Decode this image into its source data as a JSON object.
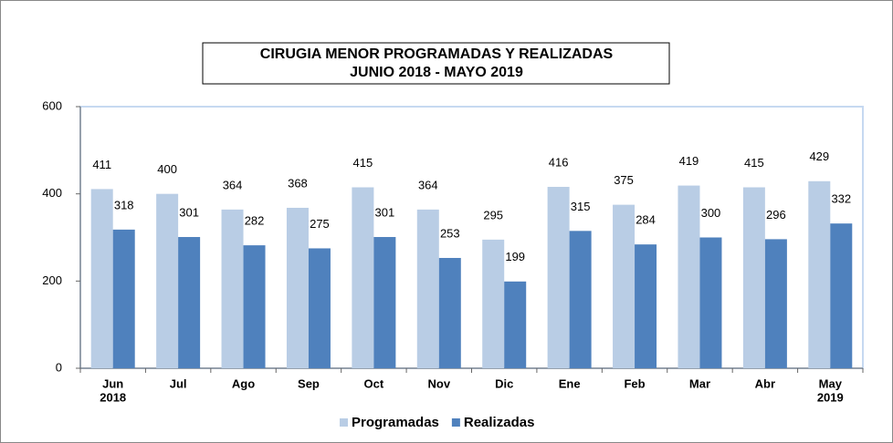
{
  "chart_data": {
    "type": "bar",
    "title": [
      "CIRUGIA MENOR PROGRAMADAS Y REALIZADAS",
      "JUNIO 2018  -  MAYO 2019"
    ],
    "categories": [
      [
        "Jun",
        "2018"
      ],
      "Jul",
      "Ago",
      "Sep",
      "Oct",
      "Nov",
      "Dic",
      "Ene",
      "Feb",
      "Mar",
      "Abr",
      [
        "May",
        "2019"
      ]
    ],
    "series": [
      {
        "name": "Programadas",
        "color": "#b9cde5",
        "values": [
          411,
          400,
          364,
          368,
          415,
          364,
          295,
          416,
          375,
          419,
          415,
          429
        ]
      },
      {
        "name": "Realizadas",
        "color": "#4f81bd",
        "values": [
          318,
          301,
          282,
          275,
          301,
          253,
          199,
          315,
          284,
          300,
          296,
          332
        ]
      }
    ],
    "ylim": [
      0,
      600
    ],
    "yticks": [
      0,
      200,
      400,
      600
    ],
    "legend": "bottom"
  }
}
